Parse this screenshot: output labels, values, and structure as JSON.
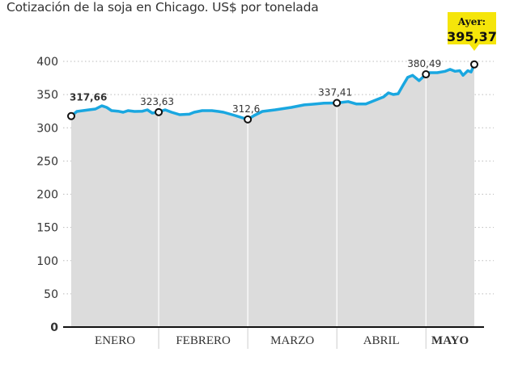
{
  "title": "Cotización de la soja en Chicago. US$ por tonelada",
  "callout": {
    "label": "Ayer:",
    "value": "395,37",
    "color": "#f5e50a"
  },
  "chart_data": {
    "type": "area",
    "title": "Cotización de la soja en Chicago. US$ por tonelada",
    "xlabel": "",
    "ylabel": "US$ por tonelada",
    "ylim": [
      0,
      400
    ],
    "yticks": [
      0,
      50,
      100,
      150,
      200,
      250,
      300,
      350,
      400
    ],
    "ytick_labels": [
      "0",
      "50",
      "100",
      "150",
      "200",
      "250",
      "300",
      "350",
      "400"
    ],
    "xlim": [
      0,
      100
    ],
    "months": [
      {
        "label": "ENERO",
        "start": 0,
        "end": 21.7,
        "bold": false
      },
      {
        "label": "FEBRERO",
        "start": 21.7,
        "end": 43.8,
        "bold": false
      },
      {
        "label": "MARZO",
        "start": 43.8,
        "end": 65.9,
        "bold": false
      },
      {
        "label": "ABRIL",
        "start": 65.9,
        "end": 88,
        "bold": false
      },
      {
        "label": "MAYO",
        "start": 88,
        "end": 100,
        "bold": true
      }
    ],
    "grid": true,
    "line_color": "#1aa7e0",
    "fill_color": "#dcdcdc",
    "series": [
      {
        "name": "Soja",
        "points": [
          [
            0,
            317.66
          ],
          [
            1.4,
            324.6
          ],
          [
            4.4,
            327
          ],
          [
            6,
            328.3
          ],
          [
            7.6,
            333.1
          ],
          [
            8.8,
            330.7
          ],
          [
            10,
            325.8
          ],
          [
            11.6,
            325
          ],
          [
            12.9,
            323.4
          ],
          [
            14.1,
            325.8
          ],
          [
            15.7,
            324.6
          ],
          [
            17.7,
            325
          ],
          [
            18.9,
            327
          ],
          [
            20.1,
            322.2
          ],
          [
            21.7,
            323.63
          ],
          [
            23.3,
            327
          ],
          [
            24.9,
            323.4
          ],
          [
            26.9,
            319.8
          ],
          [
            29.3,
            320.5
          ],
          [
            30.5,
            323.4
          ],
          [
            32.5,
            325.8
          ],
          [
            34.9,
            325.8
          ],
          [
            36.5,
            324.6
          ],
          [
            37.8,
            323.4
          ],
          [
            40.6,
            318.5
          ],
          [
            43.8,
            312.6
          ],
          [
            45.4,
            318.5
          ],
          [
            47.4,
            324.6
          ],
          [
            50.6,
            327
          ],
          [
            54.6,
            330.7
          ],
          [
            57.8,
            334.5
          ],
          [
            60.6,
            335.9
          ],
          [
            62.7,
            337
          ],
          [
            65.9,
            337.41
          ],
          [
            68.7,
            339.5
          ],
          [
            70.7,
            335.9
          ],
          [
            73.1,
            335.9
          ],
          [
            75.1,
            340.7
          ],
          [
            77.5,
            346.5
          ],
          [
            78.7,
            352.6
          ],
          [
            79.9,
            350.2
          ],
          [
            81.1,
            351.3
          ],
          [
            82.3,
            364
          ],
          [
            83.5,
            376
          ],
          [
            84.7,
            379
          ],
          [
            86.3,
            371
          ],
          [
            88,
            380.49
          ],
          [
            88.8,
            383
          ],
          [
            90.8,
            383
          ],
          [
            92.8,
            385
          ],
          [
            94,
            388
          ],
          [
            95.2,
            385
          ],
          [
            96.4,
            386
          ],
          [
            97.2,
            379
          ],
          [
            98.4,
            386
          ],
          [
            99.2,
            384
          ],
          [
            100,
            395.37
          ]
        ]
      }
    ],
    "annotations": [
      {
        "x": 0,
        "y": 317.66,
        "text": "317,66",
        "bold": true
      },
      {
        "x": 21.7,
        "y": 323.63,
        "text": "323,63",
        "bold": false
      },
      {
        "x": 43.8,
        "y": 312.6,
        "text": "312,6",
        "bold": false
      },
      {
        "x": 65.9,
        "y": 337.41,
        "text": "337,41",
        "bold": false
      },
      {
        "x": 88,
        "y": 380.49,
        "text": "380,49",
        "bold": false
      },
      {
        "x": 100,
        "y": 395.37,
        "text": "",
        "bold": false
      }
    ]
  }
}
